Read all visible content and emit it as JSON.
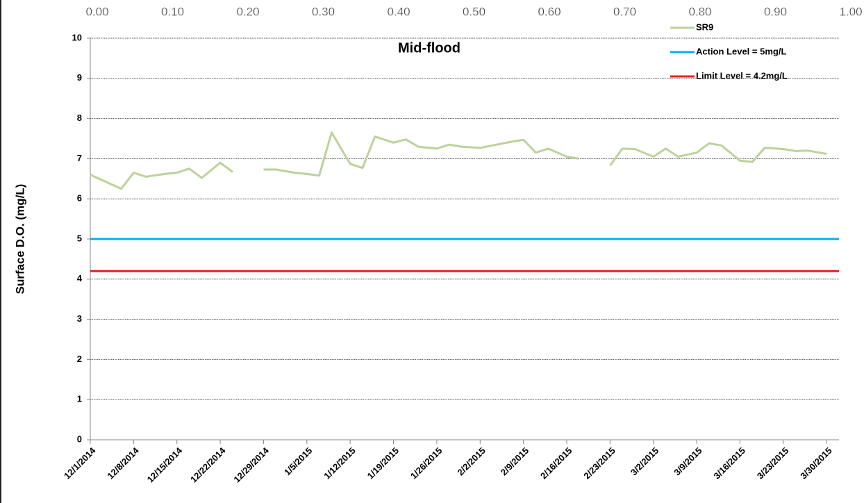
{
  "chart_data": {
    "type": "line",
    "title": "Mid-flood",
    "y_label": "Surface D.O. (mg/L)",
    "x": [
      "2014-12-01",
      "2014-12-06",
      "2014-12-08",
      "2014-12-10",
      "2014-12-13",
      "2014-12-15",
      "2014-12-17",
      "2014-12-19",
      "2014-12-22",
      "2014-12-24",
      "2014-12-26",
      "2014-12-29",
      "2014-12-31",
      "2015-01-03",
      "2015-01-05",
      "2015-01-07",
      "2015-01-09",
      "2015-01-12",
      "2015-01-14",
      "2015-01-16",
      "2015-01-19",
      "2015-01-21",
      "2015-01-23",
      "2015-01-26",
      "2015-01-28",
      "2015-01-30",
      "2015-02-02",
      "2015-02-04",
      "2015-02-07",
      "2015-02-09",
      "2015-02-11",
      "2015-02-13",
      "2015-02-16",
      "2015-02-18",
      "2015-02-20",
      "2015-02-23",
      "2015-02-25",
      "2015-02-27",
      "2015-03-02",
      "2015-03-04",
      "2015-03-06",
      "2015-03-09",
      "2015-03-11",
      "2015-03-13",
      "2015-03-16",
      "2015-03-18",
      "2015-03-20",
      "2015-03-23",
      "2015-03-25",
      "2015-03-27",
      "2015-03-30"
    ],
    "series": [
      {
        "name": "SR9",
        "color": "#bcd29a",
        "values": [
          6.6,
          6.25,
          6.65,
          6.55,
          6.62,
          6.65,
          6.75,
          6.52,
          6.9,
          6.67,
          null,
          6.73,
          6.73,
          6.65,
          6.62,
          6.58,
          7.65,
          6.87,
          6.77,
          7.55,
          7.4,
          7.48,
          7.3,
          7.25,
          7.35,
          7.3,
          7.27,
          7.33,
          7.42,
          7.47,
          7.15,
          7.25,
          7.05,
          7.0,
          null,
          6.83,
          7.25,
          7.24,
          7.05,
          7.25,
          7.05,
          7.15,
          7.38,
          7.33,
          6.95,
          6.92,
          7.27,
          7.24,
          7.19,
          7.2,
          7.12
        ]
      }
    ],
    "hlines": [
      {
        "name": "Action Level = 5mg/L",
        "color": "#00b0f0",
        "value": 5
      },
      {
        "name": "Limit Level = 4.2mg/L",
        "color": "#e8201c",
        "value": 4.2
      }
    ],
    "xlim": [
      "2014-12-01",
      "2015-04-01"
    ],
    "xticks": [
      {
        "value": "2014-12-01",
        "label": "12/1/2014"
      },
      {
        "value": "2014-12-08",
        "label": "12/8/2014"
      },
      {
        "value": "2014-12-15",
        "label": "12/15/2014"
      },
      {
        "value": "2014-12-22",
        "label": "12/22/2014"
      },
      {
        "value": "2014-12-29",
        "label": "12/29/2014"
      },
      {
        "value": "2015-01-05",
        "label": "1/5/2015"
      },
      {
        "value": "2015-01-12",
        "label": "1/12/2015"
      },
      {
        "value": "2015-01-19",
        "label": "1/19/2015"
      },
      {
        "value": "2015-01-26",
        "label": "1/26/2015"
      },
      {
        "value": "2015-02-02",
        "label": "2/2/2015"
      },
      {
        "value": "2015-02-09",
        "label": "2/9/2015"
      },
      {
        "value": "2015-02-16",
        "label": "2/16/2015"
      },
      {
        "value": "2015-02-23",
        "label": "2/23/2015"
      },
      {
        "value": "2015-03-02",
        "label": "3/2/2015"
      },
      {
        "value": "2015-03-09",
        "label": "3/9/2015"
      },
      {
        "value": "2015-03-16",
        "label": "3/16/2015"
      },
      {
        "value": "2015-03-23",
        "label": "3/23/2015"
      },
      {
        "value": "2015-03-30",
        "label": "3/30/2015"
      }
    ],
    "ylim": [
      0,
      10
    ],
    "yticks": [
      0,
      1,
      2,
      3,
      4,
      5,
      6,
      7,
      8,
      9,
      10
    ],
    "x2lim": [
      0,
      1
    ],
    "x2ticks": [
      {
        "value": 0,
        "label": "0.00"
      },
      {
        "value": 0.1,
        "label": "0.10"
      },
      {
        "value": 0.2,
        "label": "0.20"
      },
      {
        "value": 0.3,
        "label": "0.30"
      },
      {
        "value": 0.4,
        "label": "0.40"
      },
      {
        "value": 0.5,
        "label": "0.50"
      },
      {
        "value": 0.6,
        "label": "0.60"
      },
      {
        "value": 0.7,
        "label": "0.70"
      },
      {
        "value": 0.8,
        "label": "0.80"
      },
      {
        "value": 0.9,
        "label": "0.90"
      },
      {
        "value": 1,
        "label": "1.00"
      }
    ],
    "grid": true,
    "legend": "top-right"
  }
}
